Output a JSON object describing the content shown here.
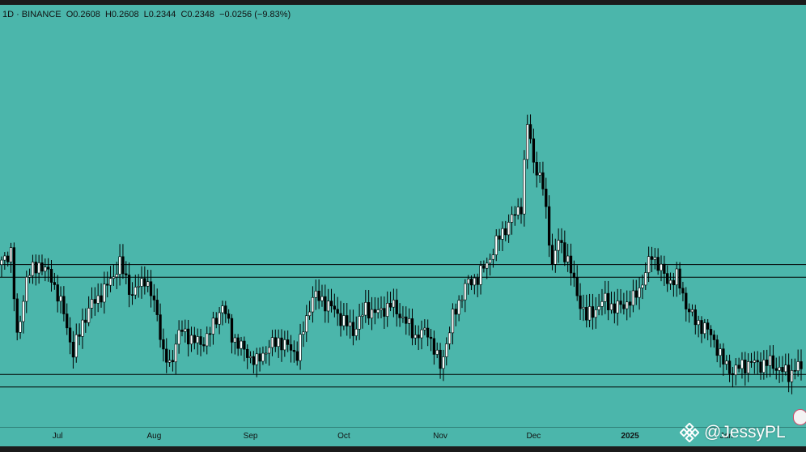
{
  "legend": {
    "interval": "1D",
    "separator": "·",
    "exchange": "BINANCE",
    "open": "O0.2608",
    "high": "H0.2608",
    "low": "L0.2344",
    "close": "C0.2348",
    "change": "−0.0256 (−9.83%)"
  },
  "watermark": {
    "text": "@JessyPL"
  },
  "colors": {
    "background": "#4bb6ab",
    "up_candle": "#ffffff",
    "down_candle": "#000000",
    "wick": "#000000",
    "level_line": "#000000"
  },
  "chart_data": {
    "type": "candlestick",
    "title": "",
    "x_ticks": [
      {
        "label": "Jul",
        "day": 18,
        "bold": false
      },
      {
        "label": "Aug",
        "day": 49,
        "bold": false
      },
      {
        "label": "Sep",
        "day": 80,
        "bold": false
      },
      {
        "label": "Oct",
        "day": 110,
        "bold": false
      },
      {
        "label": "Nov",
        "day": 141,
        "bold": false
      },
      {
        "label": "Dec",
        "day": 171,
        "bold": false
      },
      {
        "label": "2025",
        "day": 202,
        "bold": true
      },
      {
        "label": "Jan",
        "day": 233,
        "bold": false
      }
    ],
    "ylim": [
      0.17,
      0.62
    ],
    "level_lines": [
      0.344,
      0.33,
      0.222,
      0.208
    ],
    "keypoints": [
      [
        0,
        0.345
      ],
      [
        3,
        0.36
      ],
      [
        5,
        0.26
      ],
      [
        8,
        0.33
      ],
      [
        12,
        0.345
      ],
      [
        16,
        0.33
      ],
      [
        20,
        0.29
      ],
      [
        23,
        0.245
      ],
      [
        26,
        0.28
      ],
      [
        29,
        0.3
      ],
      [
        33,
        0.315
      ],
      [
        38,
        0.345
      ],
      [
        42,
        0.31
      ],
      [
        46,
        0.33
      ],
      [
        50,
        0.29
      ],
      [
        52,
        0.245
      ],
      [
        54,
        0.23
      ],
      [
        57,
        0.27
      ],
      [
        60,
        0.265
      ],
      [
        64,
        0.255
      ],
      [
        68,
        0.275
      ],
      [
        71,
        0.3
      ],
      [
        74,
        0.265
      ],
      [
        78,
        0.248
      ],
      [
        82,
        0.235
      ],
      [
        85,
        0.25
      ],
      [
        89,
        0.26
      ],
      [
        95,
        0.245
      ],
      [
        100,
        0.31
      ],
      [
        105,
        0.3
      ],
      [
        109,
        0.285
      ],
      [
        113,
        0.27
      ],
      [
        117,
        0.295
      ],
      [
        121,
        0.29
      ],
      [
        125,
        0.3
      ],
      [
        129,
        0.285
      ],
      [
        133,
        0.265
      ],
      [
        137,
        0.27
      ],
      [
        141,
        0.23
      ],
      [
        145,
        0.285
      ],
      [
        149,
        0.32
      ],
      [
        153,
        0.33
      ],
      [
        156,
        0.345
      ],
      [
        160,
        0.375
      ],
      [
        164,
        0.395
      ],
      [
        167,
        0.41
      ],
      [
        169,
        0.5
      ],
      [
        171,
        0.46
      ],
      [
        174,
        0.43
      ],
      [
        177,
        0.345
      ],
      [
        179,
        0.37
      ],
      [
        182,
        0.35
      ],
      [
        185,
        0.31
      ],
      [
        188,
        0.285
      ],
      [
        191,
        0.295
      ],
      [
        194,
        0.305
      ],
      [
        197,
        0.295
      ],
      [
        200,
        0.3
      ],
      [
        203,
        0.305
      ],
      [
        206,
        0.325
      ],
      [
        209,
        0.355
      ],
      [
        211,
        0.345
      ],
      [
        214,
        0.325
      ],
      [
        217,
        0.33
      ],
      [
        220,
        0.3
      ],
      [
        223,
        0.28
      ],
      [
        226,
        0.275
      ],
      [
        229,
        0.26
      ],
      [
        232,
        0.235
      ],
      [
        235,
        0.225
      ],
      [
        238,
        0.232
      ],
      [
        241,
        0.235
      ],
      [
        244,
        0.233
      ],
      [
        247,
        0.235
      ],
      [
        250,
        0.228
      ],
      [
        253,
        0.222
      ],
      [
        256,
        0.232
      ],
      [
        257,
        0.224
      ]
    ]
  }
}
